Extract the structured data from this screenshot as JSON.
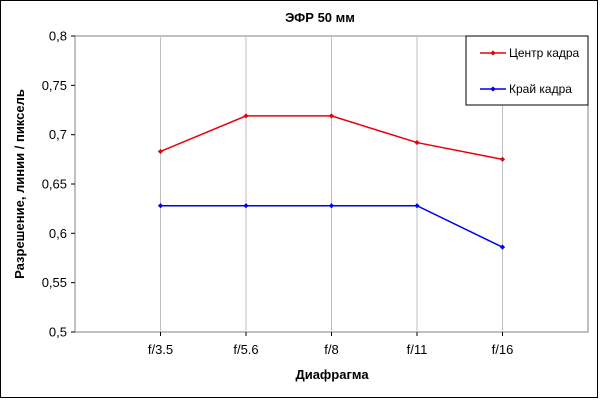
{
  "chart_data": {
    "type": "line",
    "title": "ЭФР 50 мм",
    "xlabel": "Диафрагма",
    "ylabel": "Разрешение, линии / пиксель",
    "categories": [
      "f/3.5",
      "f/5.6",
      "f/8",
      "f/11",
      "f/16"
    ],
    "series": [
      {
        "name": "Центр кадра",
        "color": "#e8000b",
        "values": [
          0.683,
          0.719,
          0.719,
          0.692,
          0.675
        ]
      },
      {
        "name": "Край кадра",
        "color": "#0000ee",
        "values": [
          0.628,
          0.628,
          0.628,
          0.628,
          0.586
        ]
      }
    ],
    "ylim": [
      0.5,
      0.8
    ],
    "yticks": [
      0.5,
      0.55,
      0.6,
      0.65,
      0.7,
      0.75,
      0.8
    ],
    "ytick_labels": [
      "0,5",
      "0,55",
      "0,6",
      "0,65",
      "0,7",
      "0,75",
      "0,8"
    ],
    "grid": {
      "vertical": true,
      "horizontal": false
    },
    "legend": "top-right"
  }
}
